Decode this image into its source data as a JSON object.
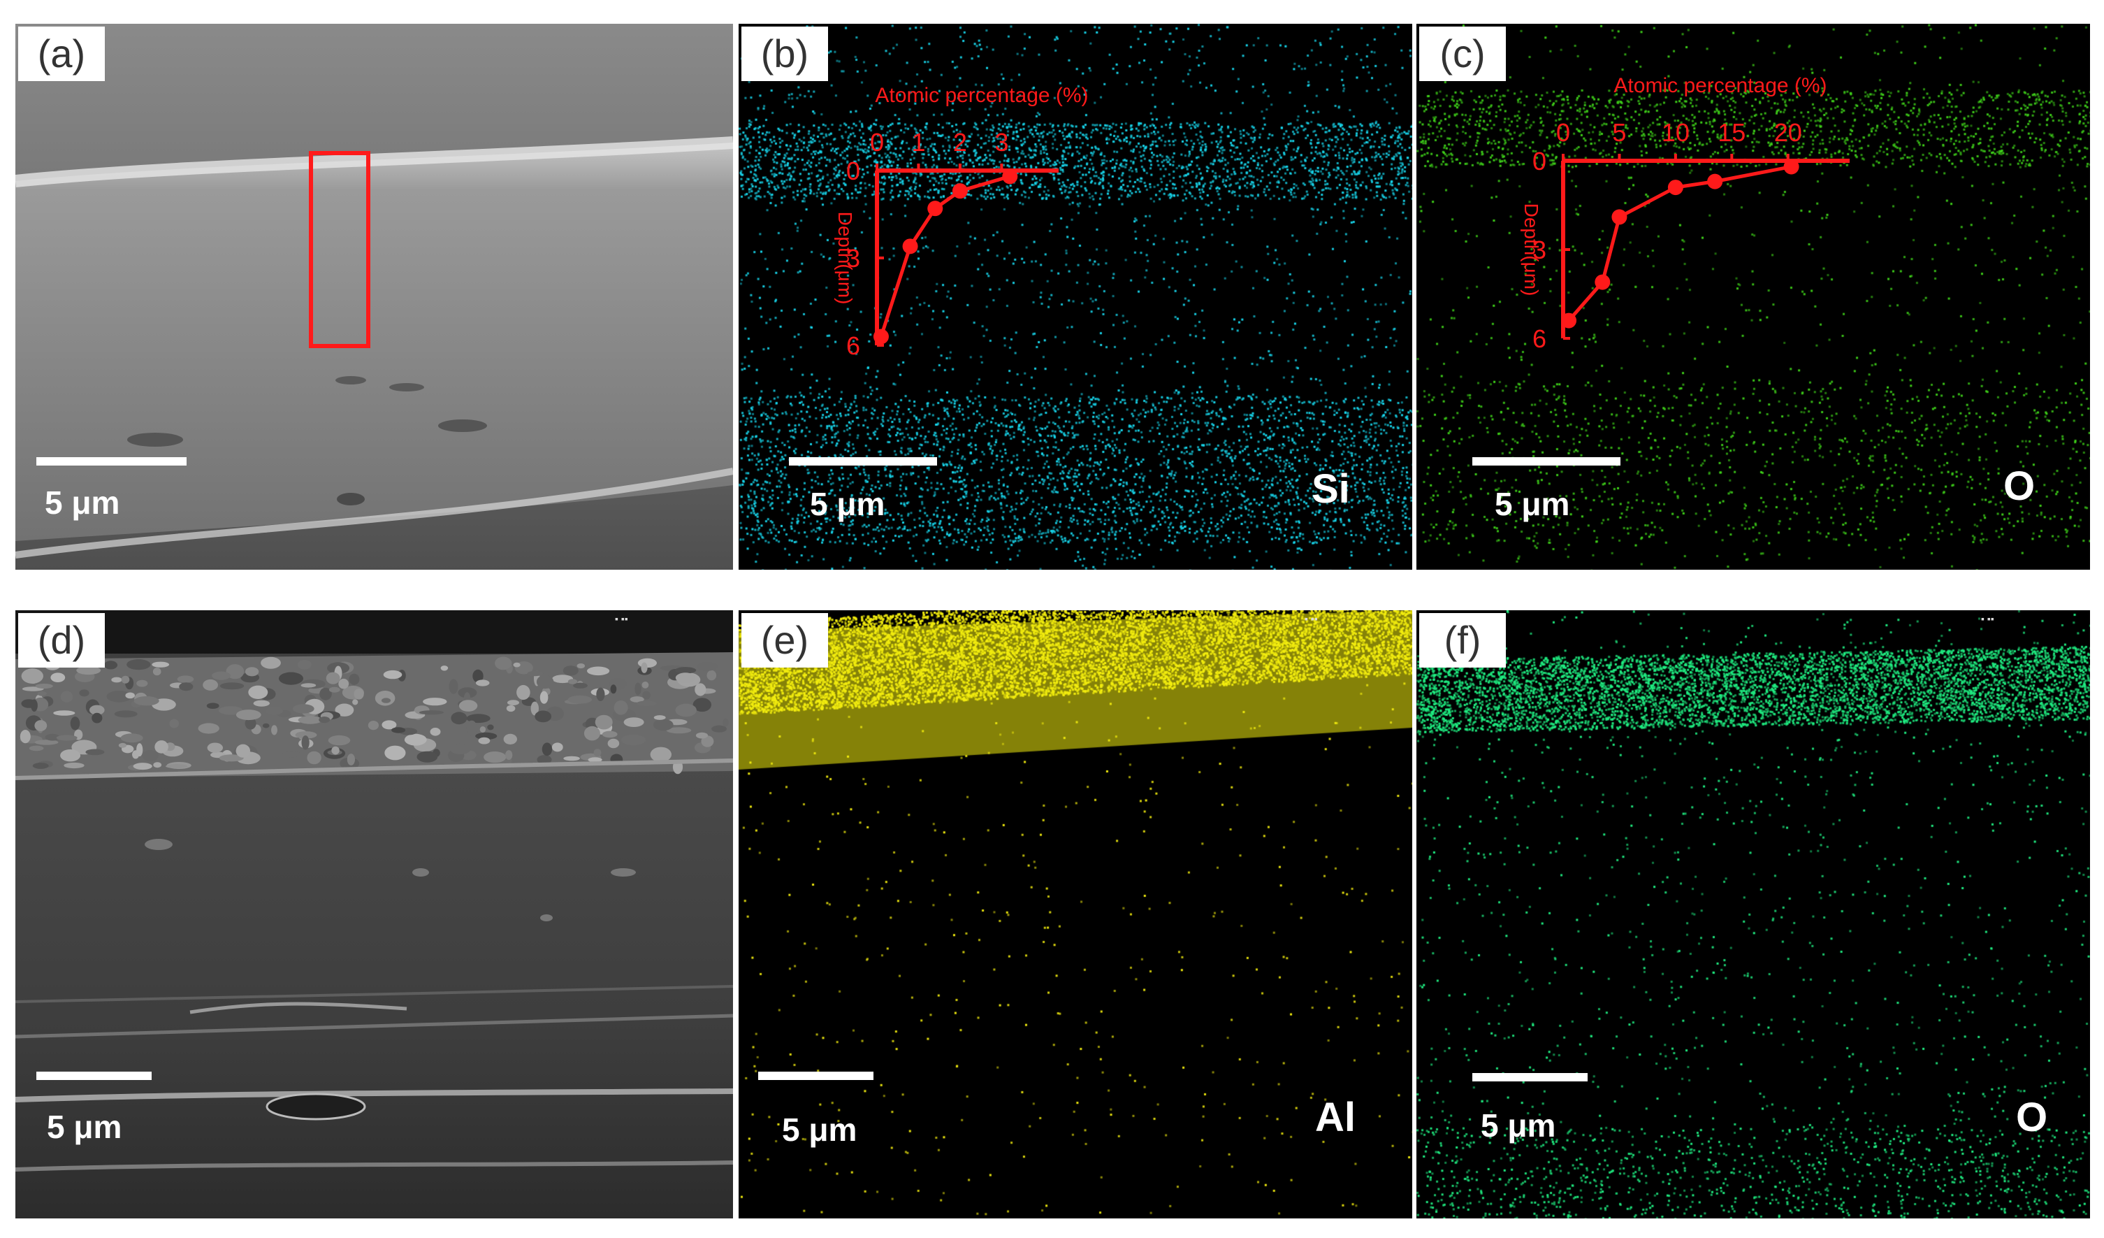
{
  "panels": [
    {
      "id": "a",
      "label": "(a)",
      "scale": "5 μm",
      "element": ""
    },
    {
      "id": "b",
      "label": "(b)",
      "scale": "5 μm",
      "element": "Si",
      "color": "#18d8ee"
    },
    {
      "id": "c",
      "label": "(c)",
      "scale": "5 μm",
      "element": "O",
      "color": "#3fd21a"
    },
    {
      "id": "d",
      "label": "(d)",
      "scale": "5 μm",
      "element": ""
    },
    {
      "id": "e",
      "label": "(e)",
      "scale": "5 μm",
      "element": "Al",
      "color": "#f2ec0f"
    },
    {
      "id": "f",
      "label": "(f)",
      "scale": "5 μm",
      "element": "O",
      "color": "#20f083"
    }
  ],
  "highlight_box_color": "#ff1a1a",
  "chart_data": [
    {
      "type": "line",
      "panel": "b",
      "xlabel": "Atomic percentage (%)",
      "ylabel": "Depth(μm)",
      "x_ticks": [
        "0",
        "1",
        "2",
        "3"
      ],
      "y_ticks": [
        "0",
        "3",
        "6"
      ],
      "xlim": [
        0,
        3.7
      ],
      "ylim": [
        0,
        6
      ],
      "series": [
        {
          "x": [
            3.2,
            2.0,
            1.4,
            0.8,
            0.1
          ],
          "y": [
            0.2,
            0.7,
            1.3,
            2.6,
            5.7
          ]
        }
      ]
    },
    {
      "type": "line",
      "panel": "c",
      "xlabel": "Atomic percentage (%)",
      "ylabel": "Depth(μm)",
      "x_ticks": [
        "0",
        "5",
        "10",
        "15",
        "20"
      ],
      "y_ticks": [
        "0",
        "3",
        "6"
      ],
      "xlim": [
        0,
        23
      ],
      "ylim": [
        0,
        6
      ],
      "series": [
        {
          "x": [
            20.3,
            13.5,
            10.0,
            5.0,
            3.5,
            0.5
          ],
          "y": [
            0.2,
            0.7,
            0.9,
            1.9,
            4.1,
            5.4
          ]
        }
      ]
    }
  ]
}
